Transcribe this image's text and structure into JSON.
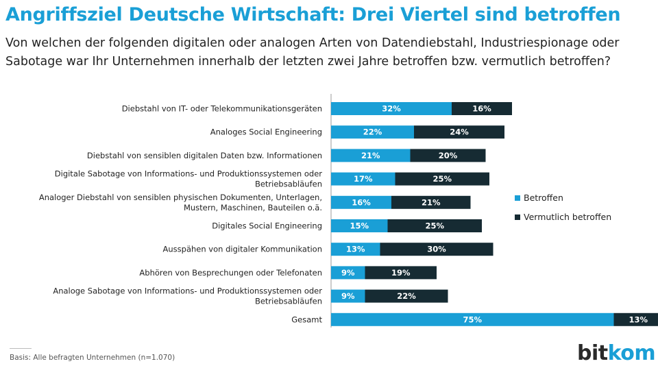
{
  "title": "Angriffsziel Deutsche Wirtschaft: Drei Viertel sind betroffen",
  "subtitle": "Von welchen der folgenden digitalen oder analogen Arten von Datendiebstahl, Industriespionage oder Sabotage war Ihr Unternehmen innerhalb der letzten zwei Jahre betroffen bzw. vermutlich betroffen?",
  "footer": "Basis: Alle befragten Unternehmen (n=1.070)",
  "logo": {
    "part1": "bit",
    "part2": "kom"
  },
  "colors": {
    "betroffen": "#1a9fd6",
    "vermutlich": "#162b33",
    "title": "#1a9fd6"
  },
  "chart_data": {
    "type": "bar",
    "orientation": "horizontal",
    "stacked": true,
    "categories": [
      [
        "Diebstahl von IT- oder Telekommunikationsgeräten"
      ],
      [
        "Analoges Social Engineering"
      ],
      [
        "Diebstahl von sensiblen digitalen Daten bzw. Informationen"
      ],
      [
        "Digitale Sabotage von Informations- und Produktionssystemen oder",
        "Betriebsabläufen"
      ],
      [
        "Analoger Diebstahl von sensiblen physischen Dokumenten, Unterlagen,",
        "Mustern, Maschinen, Bauteilen o.ä."
      ],
      [
        "Digitales Social Engineering"
      ],
      [
        "Ausspähen von digitaler Kommunikation"
      ],
      [
        "Abhören von Besprechungen oder Telefonaten"
      ],
      [
        "Analoge Sabotage von Informations- und Produktionssystemen oder",
        "Betriebsabläufen"
      ],
      [
        "Gesamt"
      ]
    ],
    "series": [
      {
        "name": "Betroffen",
        "values": [
          32,
          22,
          21,
          17,
          16,
          15,
          13,
          9,
          9,
          75
        ]
      },
      {
        "name": "Vermutlich betroffen",
        "values": [
          16,
          24,
          20,
          25,
          21,
          25,
          30,
          19,
          22,
          13
        ]
      }
    ],
    "value_suffix": "%",
    "legend_position": "right",
    "grid": false
  }
}
